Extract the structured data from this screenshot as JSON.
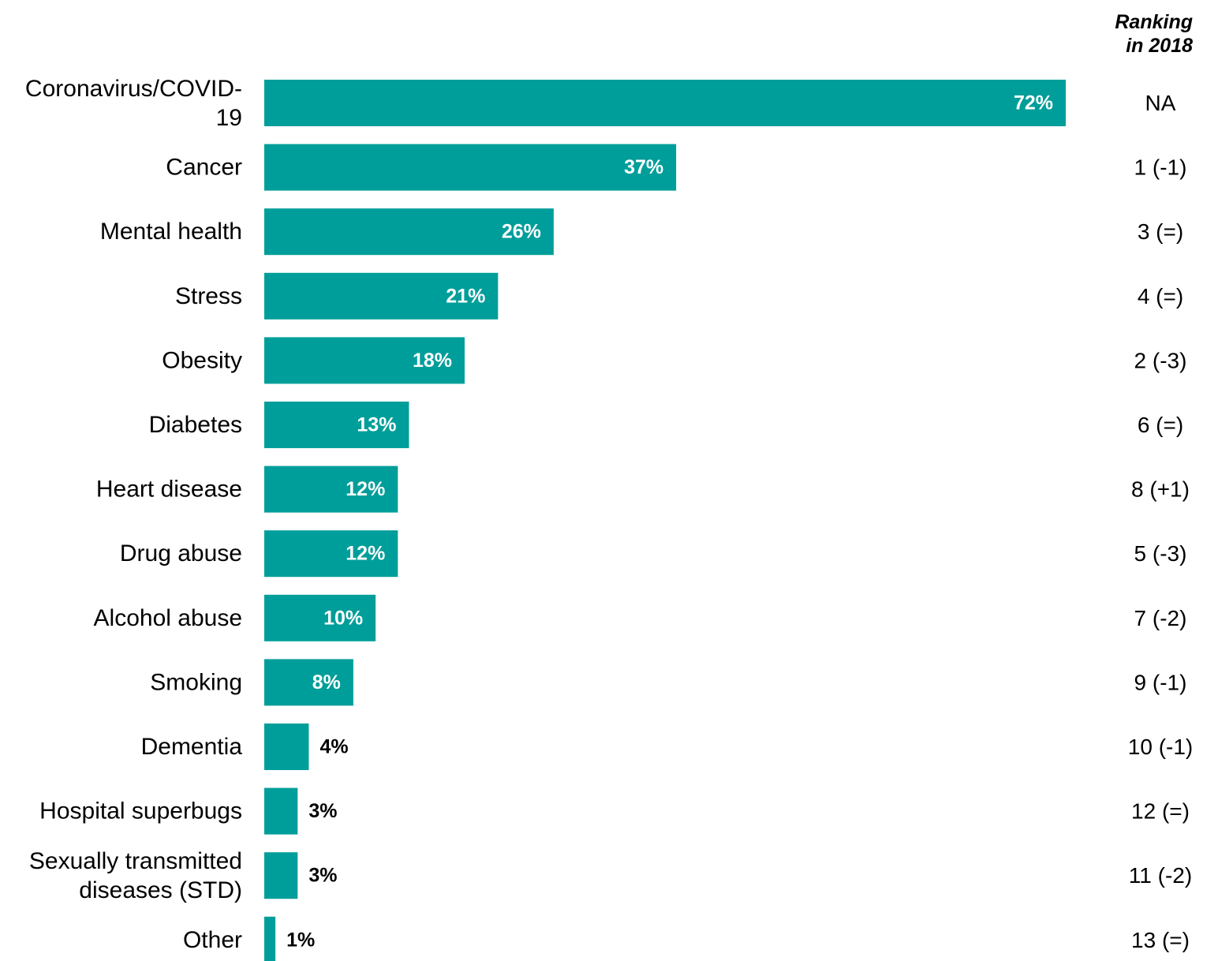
{
  "chart_data": {
    "type": "bar",
    "orientation": "horizontal",
    "categories": [
      "Coronavirus/COVID-19",
      "Cancer",
      "Mental health",
      "Stress",
      "Obesity",
      "Diabetes",
      "Heart disease",
      "Drug abuse",
      "Alcohol abuse",
      "Smoking",
      "Dementia",
      "Hospital superbugs",
      "Sexually transmitted diseases (STD)",
      "Other"
    ],
    "values": [
      72,
      37,
      26,
      21,
      18,
      13,
      12,
      12,
      10,
      8,
      4,
      3,
      3,
      1
    ],
    "value_labels": [
      "72%",
      "37%",
      "26%",
      "21%",
      "18%",
      "13%",
      "12%",
      "12%",
      "10%",
      "8%",
      "4%",
      "3%",
      "3%",
      "1%"
    ],
    "ranking_header": [
      "Ranking",
      "in 2018"
    ],
    "rankings": [
      "NA",
      "1 (-1)",
      "3 (=)",
      "4 (=)",
      "2 (-3)",
      "6 (=)",
      "8 (+1)",
      "5 (-3)",
      "7 (-2)",
      "9 (-1)",
      "10 (-1)",
      "12 (=)",
      "11 (-2)",
      "13 (=)"
    ],
    "bar_color": "#009E9A",
    "inside_label_color": "#FFFFFF",
    "outside_label_color": "#000000",
    "xlim": [
      0,
      72
    ],
    "grid": false,
    "legend": "none"
  }
}
